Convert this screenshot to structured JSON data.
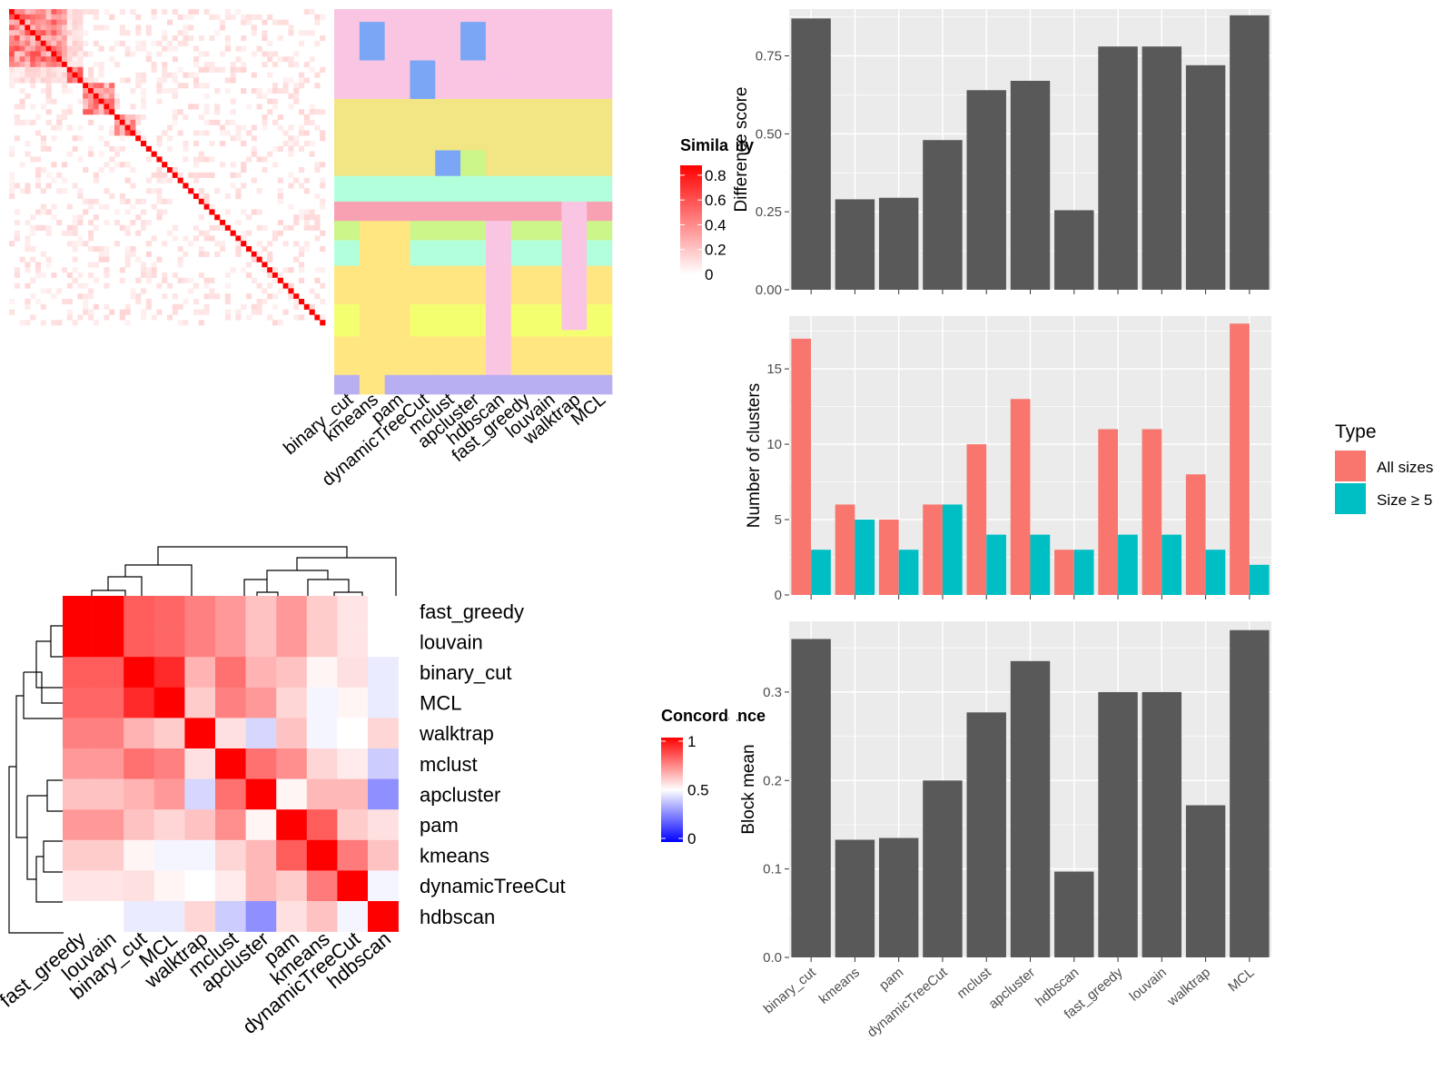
{
  "colors": {
    "panel_bg": "#ebebeb",
    "grid": "#ffffff",
    "bar_dark": "#595959",
    "all_sizes": "#f8766d",
    "size_ge5": "#00bfc4",
    "heat_high": "#ff0000",
    "heat_mid": "#ffffff",
    "heat_low": "#0000ff",
    "cluster_palette": [
      "#f9c5e3",
      "#f2e584",
      "#b2ffdc",
      "#7ba6f5",
      "#f7a1b3",
      "#ccf58a",
      "#ffe680",
      "#f4ff70",
      "#b8aef2",
      "#f3b39a",
      "#9deef0"
    ]
  },
  "methods": [
    "binary_cut",
    "kmeans",
    "pam",
    "dynamicTreeCut",
    "mclust",
    "apcluster",
    "hdbscan",
    "fast_greedy",
    "louvain",
    "walktrap",
    "MCL"
  ],
  "similarity_panel": {
    "legend_title": "Similarity",
    "legend_ticks": [
      "0.8",
      "0.6",
      "0.4",
      "0.2",
      "0"
    ]
  },
  "concordance_panel": {
    "legend_title": "Concordance",
    "legend_ticks": [
      "1",
      "0.5",
      "0"
    ],
    "order": [
      "fast_greedy",
      "louvain",
      "binary_cut",
      "MCL",
      "walktrap",
      "mclust",
      "apcluster",
      "pam",
      "kmeans",
      "dynamicTreeCut",
      "hdbscan"
    ]
  },
  "chart_data": [
    {
      "type": "bar",
      "categories": [
        "binary_cut",
        "kmeans",
        "pam",
        "dynamicTreeCut",
        "mclust",
        "apcluster",
        "hdbscan",
        "fast_greedy",
        "louvain",
        "walktrap",
        "MCL"
      ],
      "values": [
        0.87,
        0.29,
        0.295,
        0.48,
        0.64,
        0.67,
        0.255,
        0.78,
        0.78,
        0.72,
        0.88
      ],
      "ylabel": "Difference score",
      "ylim": [
        0,
        0.9
      ],
      "yticks": [
        "0.00",
        "0.25",
        "0.50",
        "0.75"
      ]
    },
    {
      "type": "bar",
      "categories": [
        "binary_cut",
        "kmeans",
        "pam",
        "dynamicTreeCut",
        "mclust",
        "apcluster",
        "hdbscan",
        "fast_greedy",
        "louvain",
        "walktrap",
        "MCL"
      ],
      "series": [
        {
          "name": "All sizes",
          "values": [
            17,
            6,
            5,
            6,
            10,
            13,
            3,
            11,
            11,
            8,
            18
          ]
        },
        {
          "name": "Size ≥ 5",
          "values": [
            3,
            5,
            3,
            6,
            4,
            4,
            3,
            4,
            4,
            3,
            2
          ]
        }
      ],
      "ylabel": "Number of clusters",
      "ylim": [
        0,
        18.5
      ],
      "yticks": [
        "0",
        "5",
        "10",
        "15"
      ],
      "legend_title": "Type",
      "legend_placement": "right"
    },
    {
      "type": "bar",
      "categories": [
        "binary_cut",
        "kmeans",
        "pam",
        "dynamicTreeCut",
        "mclust",
        "apcluster",
        "hdbscan",
        "fast_greedy",
        "louvain",
        "walktrap",
        "MCL"
      ],
      "values": [
        0.36,
        0.133,
        0.135,
        0.2,
        0.277,
        0.335,
        0.097,
        0.3,
        0.3,
        0.172,
        0.37
      ],
      "ylabel": "Block mean",
      "ylim": [
        0,
        0.38
      ],
      "yticks": [
        "0.0",
        "0.1",
        "0.2",
        "0.3"
      ]
    },
    {
      "type": "heatmap",
      "rows": [
        "fast_greedy",
        "louvain",
        "binary_cut",
        "MCL",
        "walktrap",
        "mclust",
        "apcluster",
        "pam",
        "kmeans",
        "dynamicTreeCut",
        "hdbscan"
      ],
      "columns": [
        "fast_greedy",
        "louvain",
        "binary_cut",
        "MCL",
        "walktrap",
        "mclust",
        "apcluster",
        "pam",
        "kmeans",
        "dynamicTreeCut",
        "hdbscan"
      ],
      "values": [
        [
          1.0,
          1.0,
          0.82,
          0.8,
          0.75,
          0.7,
          0.62,
          0.7,
          0.6,
          0.55,
          0.5
        ],
        [
          1.0,
          1.0,
          0.82,
          0.8,
          0.75,
          0.7,
          0.62,
          0.7,
          0.6,
          0.55,
          0.5
        ],
        [
          0.82,
          0.82,
          1.0,
          0.92,
          0.65,
          0.78,
          0.65,
          0.62,
          0.52,
          0.56,
          0.46
        ],
        [
          0.8,
          0.8,
          0.92,
          1.0,
          0.6,
          0.75,
          0.7,
          0.58,
          0.48,
          0.52,
          0.46
        ],
        [
          0.75,
          0.75,
          0.65,
          0.6,
          1.0,
          0.56,
          0.42,
          0.62,
          0.48,
          0.5,
          0.58
        ],
        [
          0.7,
          0.7,
          0.78,
          0.75,
          0.56,
          1.0,
          0.78,
          0.72,
          0.58,
          0.54,
          0.4
        ],
        [
          0.62,
          0.62,
          0.65,
          0.7,
          0.42,
          0.78,
          1.0,
          0.52,
          0.64,
          0.64,
          0.28
        ],
        [
          0.7,
          0.7,
          0.62,
          0.58,
          0.62,
          0.72,
          0.52,
          1.0,
          0.82,
          0.6,
          0.56
        ],
        [
          0.6,
          0.6,
          0.52,
          0.48,
          0.48,
          0.58,
          0.64,
          0.82,
          1.0,
          0.76,
          0.62
        ],
        [
          0.55,
          0.55,
          0.56,
          0.52,
          0.5,
          0.54,
          0.64,
          0.6,
          0.76,
          1.0,
          0.48
        ],
        [
          0.5,
          0.5,
          0.46,
          0.46,
          0.58,
          0.4,
          0.28,
          0.56,
          0.62,
          0.48,
          1.0
        ]
      ],
      "scale": [
        0,
        1
      ]
    }
  ]
}
